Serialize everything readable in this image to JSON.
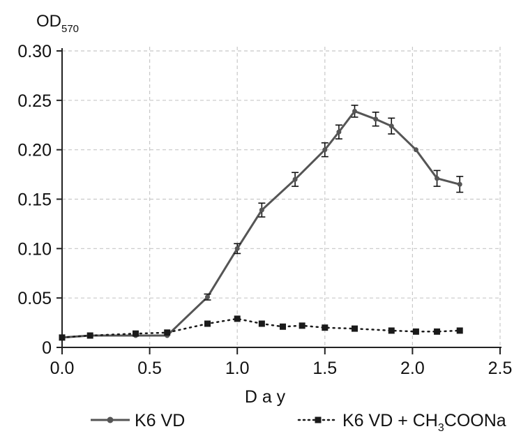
{
  "chart_data": {
    "type": "line",
    "ylabel_main": "OD",
    "ylabel_sub": "570",
    "xlabel": "D a y",
    "xlim": [
      0,
      2.5
    ],
    "ylim": [
      0,
      0.3
    ],
    "x_ticks": [
      "0.0",
      "0.5",
      "1.0",
      "1.5",
      "2.0",
      "2.5"
    ],
    "y_ticks": [
      "0",
      "0.05",
      "0.10",
      "0.15",
      "0.20",
      "0.25",
      "0.30"
    ],
    "grid": true,
    "legend_position": "bottom",
    "series": [
      {
        "name": "K6 VD",
        "style": "solid",
        "marker": "circle",
        "color": "#555555",
        "points": [
          {
            "x": 0.0,
            "y": 0.01
          },
          {
            "x": 0.16,
            "y": 0.012
          },
          {
            "x": 0.42,
            "y": 0.012
          },
          {
            "x": 0.6,
            "y": 0.012
          },
          {
            "x": 0.83,
            "y": 0.051,
            "err": 0.003
          },
          {
            "x": 1.0,
            "y": 0.1,
            "err": 0.005
          },
          {
            "x": 1.14,
            "y": 0.139,
            "err": 0.007
          },
          {
            "x": 1.33,
            "y": 0.17,
            "err": 0.007
          },
          {
            "x": 1.5,
            "y": 0.2,
            "err": 0.007
          },
          {
            "x": 1.58,
            "y": 0.218,
            "err": 0.007
          },
          {
            "x": 1.67,
            "y": 0.239,
            "err": 0.006
          },
          {
            "x": 1.79,
            "y": 0.231,
            "err": 0.007
          },
          {
            "x": 1.88,
            "y": 0.224,
            "err": 0.008
          },
          {
            "x": 2.02,
            "y": 0.2
          },
          {
            "x": 2.14,
            "y": 0.171,
            "err": 0.008
          },
          {
            "x": 2.27,
            "y": 0.165,
            "err": 0.008
          }
        ]
      },
      {
        "name_main": "K6 VD + CH",
        "name_sub": "3",
        "name_tail": "COONa",
        "style": "dotted",
        "marker": "square",
        "color": "#1a1a1a",
        "points": [
          {
            "x": 0.0,
            "y": 0.01
          },
          {
            "x": 0.16,
            "y": 0.012
          },
          {
            "x": 0.42,
            "y": 0.014
          },
          {
            "x": 0.6,
            "y": 0.015
          },
          {
            "x": 0.83,
            "y": 0.024
          },
          {
            "x": 1.0,
            "y": 0.029
          },
          {
            "x": 1.14,
            "y": 0.024
          },
          {
            "x": 1.26,
            "y": 0.021
          },
          {
            "x": 1.37,
            "y": 0.022
          },
          {
            "x": 1.5,
            "y": 0.02
          },
          {
            "x": 1.67,
            "y": 0.019
          },
          {
            "x": 1.88,
            "y": 0.017
          },
          {
            "x": 2.02,
            "y": 0.016
          },
          {
            "x": 2.14,
            "y": 0.016
          },
          {
            "x": 2.27,
            "y": 0.017
          }
        ]
      }
    ]
  }
}
